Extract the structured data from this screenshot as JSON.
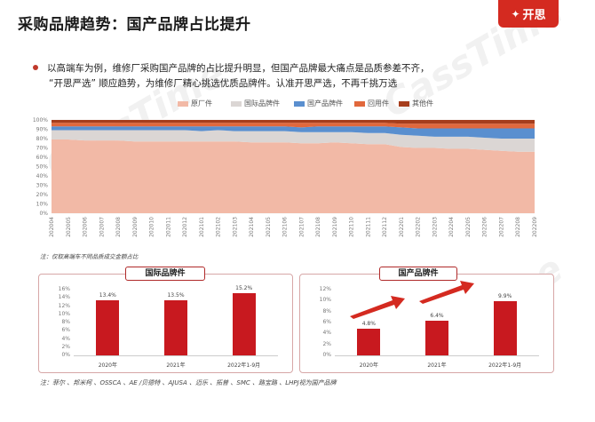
{
  "header": {
    "title": "采购品牌趋势：国产品牌占比提升",
    "logo_text": "开思"
  },
  "intro": {
    "line1": "以高端车为例，维修厂采购国产品牌的占比提升明显，但国产品牌最大痛点是品质参差不齐，",
    "line2": "“开思严选” 顺应趋势，为维修厂精心挑选优质品牌件。认准开思严选，不再千挑万选"
  },
  "colors": {
    "accent": "#c8191f",
    "oem": "#f2b9a6",
    "intl": "#dbd6d4",
    "domestic": "#5a8fcf",
    "recycled": "#e1683c",
    "other": "#a63d1c"
  },
  "area_note": "注：仅取高端车不同品质成交金额占比",
  "bottom_note": "注：菲尔 、邦米柯 、OSSCA 、AE /贝德特 、AJUSA 、迈乐 、拓普 、SMC 、路宝路 、LHPJ视为国产品牌",
  "chart_data": [
    {
      "type": "area",
      "stacked": true,
      "normalized": true,
      "legend_position": "top",
      "ylim": [
        0,
        100
      ],
      "yticks": [
        "0%",
        "10%",
        "20%",
        "30%",
        "40%",
        "50%",
        "60%",
        "70%",
        "80%",
        "90%",
        "100%"
      ],
      "x": [
        "202004",
        "202005",
        "202006",
        "202007",
        "202008",
        "202009",
        "202010",
        "202011",
        "202012",
        "202101",
        "202102",
        "202103",
        "202104",
        "202105",
        "202106",
        "202107",
        "202108",
        "202109",
        "202110",
        "202111",
        "202112",
        "202201",
        "202202",
        "202203",
        "202204",
        "202205",
        "202206",
        "202207",
        "202208",
        "202209"
      ],
      "series": [
        {
          "name": "原厂件",
          "color": "#f2b9a6",
          "values": [
            79,
            79,
            78,
            78,
            78,
            77,
            77,
            77,
            77,
            77,
            77,
            77,
            76,
            76,
            76,
            75,
            75,
            76,
            75,
            74,
            74,
            71,
            70,
            70,
            69,
            69,
            68,
            67,
            66,
            66
          ]
        },
        {
          "name": "国际品牌件",
          "color": "#dbd6d4",
          "values": [
            10,
            10,
            11,
            11,
            11,
            12,
            12,
            12,
            12,
            11,
            12,
            11,
            12,
            12,
            12,
            12,
            12,
            11,
            12,
            12,
            12,
            13,
            13,
            12,
            13,
            13,
            13,
            13,
            14,
            14
          ]
        },
        {
          "name": "国产品牌件",
          "color": "#5a8fcf",
          "values": [
            4,
            4,
            4,
            4,
            4,
            4,
            4,
            4,
            4,
            5,
            4,
            5,
            5,
            5,
            5,
            5,
            6,
            6,
            6,
            7,
            7,
            8,
            8,
            9,
            9,
            9,
            10,
            11,
            11,
            11
          ]
        },
        {
          "name": "回用件",
          "color": "#e1683c",
          "values": [
            4,
            4,
            4,
            4,
            4,
            4,
            4,
            4,
            4,
            4,
            4,
            4,
            4,
            4,
            4,
            5,
            4,
            4,
            4,
            4,
            4,
            4,
            5,
            5,
            5,
            5,
            5,
            5,
            5,
            5
          ]
        },
        {
          "name": "其他件",
          "color": "#a63d1c",
          "values": [
            3,
            3,
            3,
            3,
            3,
            3,
            3,
            3,
            3,
            3,
            3,
            3,
            3,
            3,
            3,
            3,
            3,
            3,
            3,
            3,
            3,
            4,
            4,
            4,
            4,
            4,
            4,
            4,
            4,
            4
          ]
        }
      ]
    },
    {
      "type": "bar",
      "title": "国际品牌件",
      "categories": [
        "2020年",
        "2021年",
        "2022年1-9月"
      ],
      "values": [
        13.4,
        13.5,
        15.2
      ],
      "labels": [
        "13.4%",
        "13.5%",
        "15.2%"
      ],
      "ylim": [
        0,
        16
      ],
      "yticks": [
        "0%",
        "2%",
        "4%",
        "6%",
        "8%",
        "10%",
        "12%",
        "14%",
        "16%"
      ]
    },
    {
      "type": "bar",
      "title": "国产品牌件",
      "categories": [
        "2020年",
        "2021年",
        "2022年1-9月"
      ],
      "values": [
        4.8,
        6.4,
        9.9
      ],
      "labels": [
        "4.8%",
        "6.4%",
        "9.9%"
      ],
      "ylim": [
        0,
        12
      ],
      "yticks": [
        "0%",
        "2%",
        "4%",
        "6%",
        "8%",
        "10%",
        "12%"
      ]
    }
  ]
}
